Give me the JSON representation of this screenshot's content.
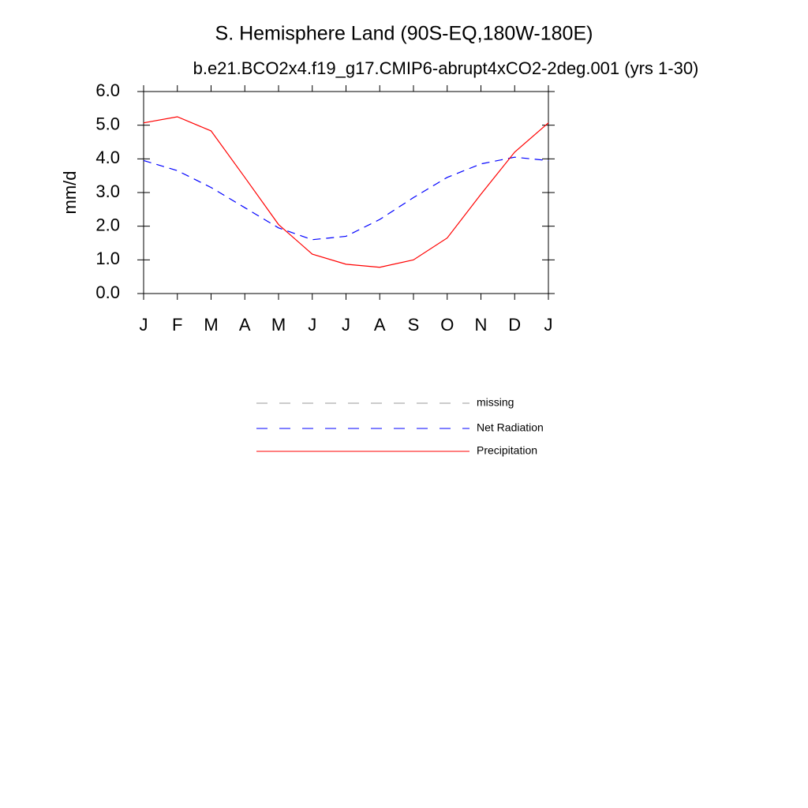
{
  "chart_data": {
    "type": "line",
    "title": "S. Hemisphere Land (90S-EQ,180W-180E)",
    "subtitle": "b.e21.BCO2x4.f19_g17.CMIP6-abrupt4xCO2-2deg.001 (yrs 1-30)",
    "y_label": "mm/d",
    "categories": [
      "J",
      "F",
      "M",
      "A",
      "M",
      "J",
      "J",
      "A",
      "S",
      "O",
      "N",
      "D",
      "J"
    ],
    "ylim": [
      0,
      6
    ],
    "yticks": [
      {
        "value": 0,
        "label": "0.0"
      },
      {
        "value": 1,
        "label": "1.0"
      },
      {
        "value": 2,
        "label": "2.0"
      },
      {
        "value": 3,
        "label": "3.0"
      },
      {
        "value": 4,
        "label": "4.0"
      },
      {
        "value": 5,
        "label": "5.0"
      },
      {
        "value": 6,
        "label": "6.0"
      }
    ],
    "grid": false,
    "series": [
      {
        "name": "missing",
        "color": "#999999",
        "dash": true,
        "values": [
          null,
          null,
          null,
          null,
          null,
          null,
          null,
          null,
          null,
          null,
          null,
          null,
          null
        ]
      },
      {
        "name": "Net Radiation",
        "color": "#0000ff",
        "dash": true,
        "values": [
          3.95,
          3.65,
          3.15,
          2.55,
          1.95,
          1.6,
          1.7,
          2.2,
          2.85,
          3.45,
          3.85,
          4.05,
          3.95
        ]
      },
      {
        "name": "Precipitation",
        "color": "#ff0000",
        "dash": false,
        "values": [
          5.07,
          5.25,
          4.83,
          3.45,
          2.05,
          1.17,
          0.87,
          0.78,
          1.0,
          1.65,
          2.95,
          4.2,
          5.07
        ]
      }
    ]
  }
}
